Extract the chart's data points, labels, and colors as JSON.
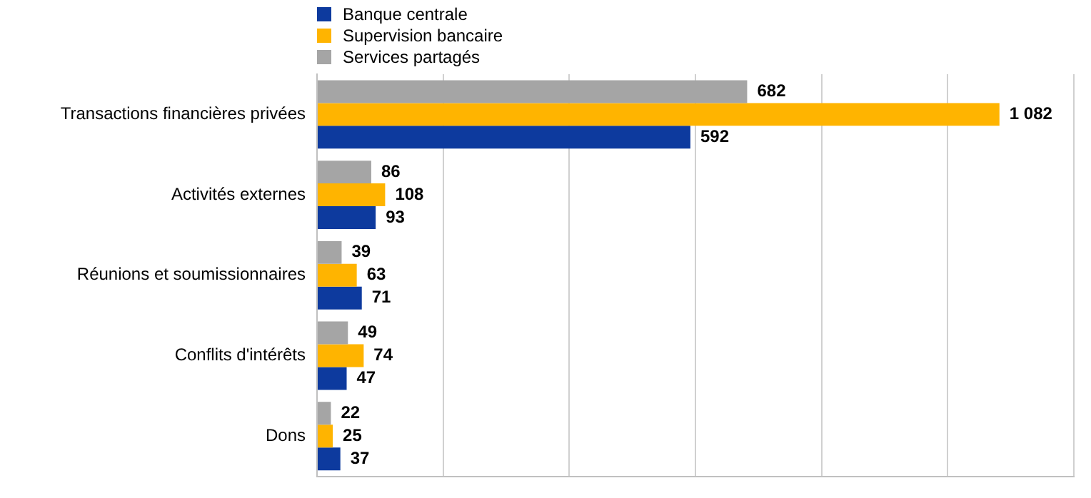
{
  "chart_data": {
    "type": "bar",
    "orientation": "horizontal",
    "categories": [
      "Transactions financières privées",
      "Activités externes",
      "Réunions et soumissionnaires",
      "Conflits d'intérêts",
      "Dons"
    ],
    "series": [
      {
        "name": "Banque centrale",
        "color": "#0d3a9e",
        "values": [
          592,
          93,
          71,
          47,
          37
        ],
        "value_labels": [
          "592",
          "93",
          "71",
          "47",
          "37"
        ]
      },
      {
        "name": "Supervision bancaire",
        "color": "#ffb400",
        "values": [
          1082,
          108,
          63,
          74,
          25
        ],
        "value_labels": [
          "1 082",
          "108",
          "63",
          "74",
          "25"
        ]
      },
      {
        "name": "Services partagés",
        "color": "#a5a5a5",
        "values": [
          682,
          86,
          39,
          49,
          22
        ],
        "value_labels": [
          "682",
          "86",
          "39",
          "49",
          "22"
        ]
      }
    ],
    "xlim": [
      0,
      1200
    ],
    "xticks": [
      {
        "value": 0,
        "label": null
      },
      {
        "value": 200,
        "label": null
      },
      {
        "value": 400,
        "label": null
      },
      {
        "value": 600,
        "label": null
      },
      {
        "value": 800,
        "label": null
      },
      {
        "value": 1000,
        "label": null
      },
      {
        "value": 1200,
        "label": null
      }
    ],
    "tick_labels": "y",
    "grid": "x",
    "legend": "top"
  }
}
